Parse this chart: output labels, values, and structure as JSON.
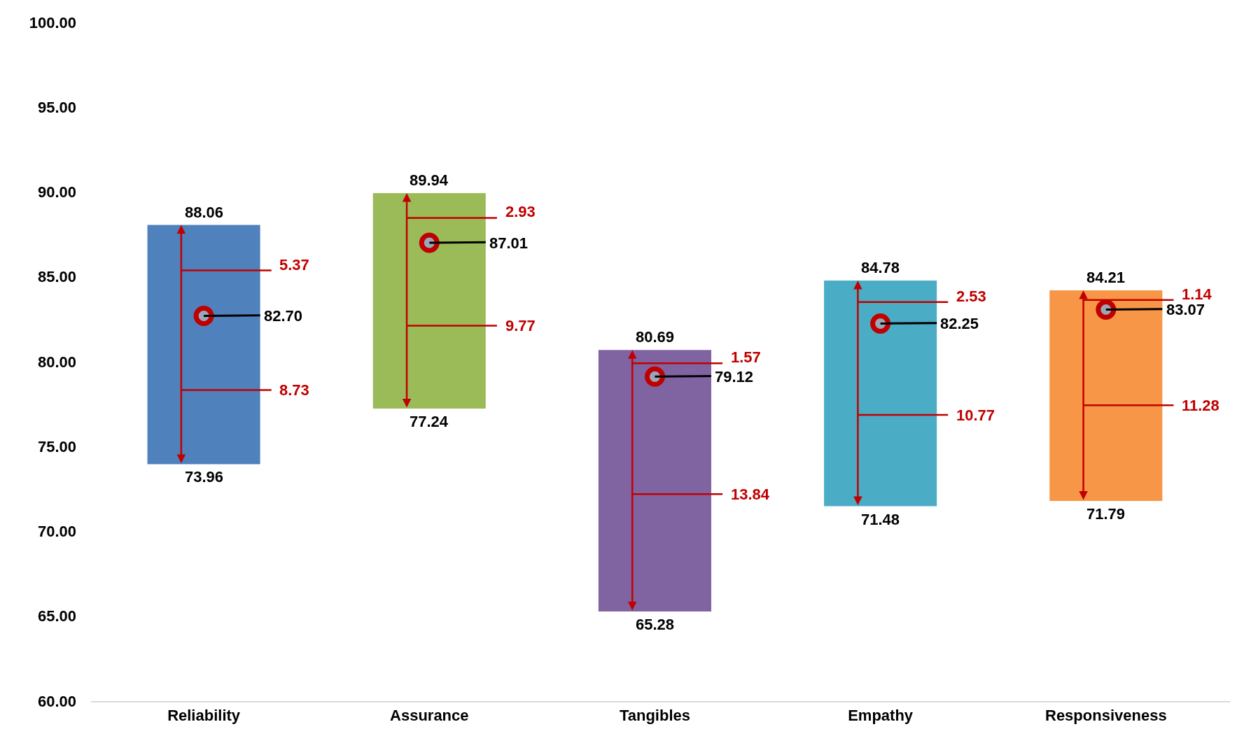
{
  "chart_data": {
    "type": "bar",
    "categories": [
      "Reliability",
      "Assurance",
      "Tangibles",
      "Empathy",
      "Responsiveness"
    ],
    "series": [
      {
        "colors": [
          "#4f81bd",
          "#9bbb59",
          "#8064a2",
          "#4bacc6",
          "#f79646"
        ],
        "base": [
          73.96,
          77.24,
          65.28,
          71.48,
          71.79
        ],
        "values": [
          14.1,
          12.7,
          15.41,
          13.3,
          12.42
        ]
      },
      {
        "type": "scatter",
        "color": "#c00000",
        "marker": "circle",
        "values": [
          82.7,
          87.01,
          79.12,
          82.25,
          83.07
        ],
        "value_labels": [
          "82.70",
          "87.01",
          "79.12",
          "82.25",
          "83.07"
        ]
      }
    ],
    "ylim": [
      60,
      100
    ],
    "yticks": [
      {
        "value": 60,
        "label": "60.00"
      },
      {
        "value": 65,
        "label": "65.00"
      },
      {
        "value": 70,
        "label": "70.00"
      },
      {
        "value": 75,
        "label": "75.00"
      },
      {
        "value": 80,
        "label": "80.00"
      },
      {
        "value": 85,
        "label": "85.00"
      },
      {
        "value": 90,
        "label": "90.00"
      },
      {
        "value": 95,
        "label": "95.00"
      },
      {
        "value": 100,
        "label": "100.00"
      }
    ],
    "grid": false,
    "annotations": [
      {
        "text": "88.06",
        "x": "Reliability",
        "y": 88.06
      },
      {
        "text": "73.96",
        "x": "Reliability",
        "y": 73.96
      },
      {
        "text": "89.94",
        "x": "Assurance",
        "y": 89.94
      },
      {
        "text": "77.24",
        "x": "Assurance",
        "y": 77.24
      },
      {
        "text": "80.69",
        "x": "Tangibles",
        "y": 80.69
      },
      {
        "text": "65.28",
        "x": "Tangibles",
        "y": 65.28
      },
      {
        "text": "84.78",
        "x": "Empathy",
        "y": 84.78
      },
      {
        "text": "71.48",
        "x": "Empathy",
        "y": 71.48
      },
      {
        "text": "84.21",
        "x": "Responsiveness",
        "y": 84.21
      },
      {
        "text": "71.79",
        "x": "Responsiveness",
        "y": 71.79
      },
      "5.37",
      "8.73",
      "2.93",
      "9.77",
      "1.57",
      "13.84",
      "2.53",
      "10.77",
      "1.14",
      "11.28"
    ]
  }
}
